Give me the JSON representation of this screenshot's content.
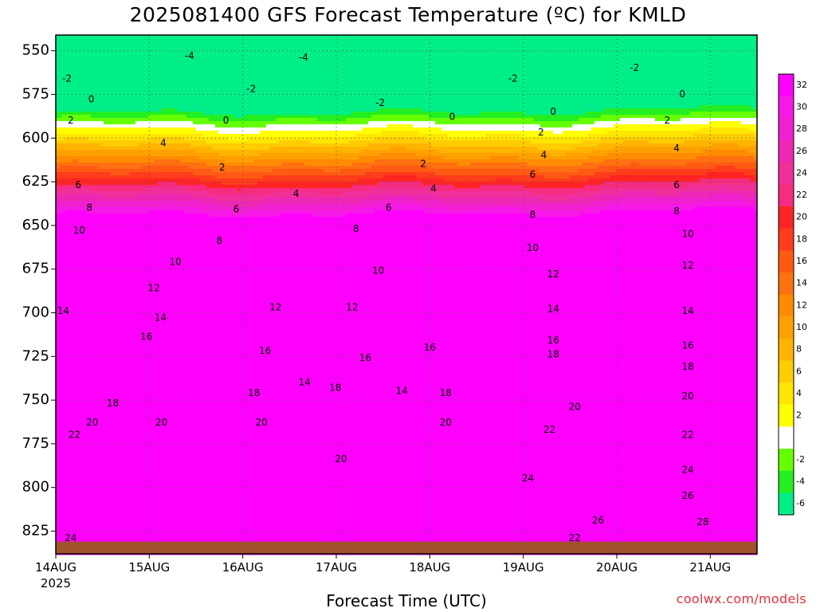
{
  "chart_data": {
    "type": "contour",
    "title": "2025081400 GFS Forecast Temperature (ºC) for KMLD",
    "xlabel": "Forecast Time (UTC)",
    "ylabel": "",
    "credit": "coolwx.com/models",
    "y_ticks": [
      550,
      575,
      600,
      625,
      650,
      675,
      700,
      725,
      750,
      775,
      800,
      825
    ],
    "ylim": [
      838,
      541
    ],
    "x_ticks": [
      "14AUG",
      "15AUG",
      "16AUG",
      "17AUG",
      "18AUG",
      "19AUG",
      "20AUG",
      "21AUG"
    ],
    "x_start_year": "2025",
    "xlim_days": [
      0,
      7.5
    ],
    "contour_interval": 2,
    "grid": true,
    "colorbar": {
      "levels": [
        32,
        30,
        28,
        26,
        24,
        22,
        20,
        18,
        16,
        14,
        12,
        10,
        8,
        6,
        4,
        2,
        -2,
        -4,
        -6
      ],
      "colors": {
        "32": "#ff00ff",
        "30": "#f618e6",
        "28": "#f020d0",
        "26": "#ec28b4",
        "24": "#f0309a",
        "22": "#f52c80",
        "20": "#ff2424",
        "18": "#ff3c1c",
        "16": "#ff5a14",
        "14": "#ff7010",
        "12": "#ff8c00",
        "10": "#ffa000",
        "8": "#ffb400",
        "6": "#ffcc00",
        "4": "#ffe600",
        "2": "#ffff00",
        "0": "#ffffff",
        "-2": "#66ff00",
        "-4": "#22ee22",
        "-6": "#00ee88"
      }
    },
    "ground_color": "#a0522d",
    "contour_labels": [
      {
        "t": 0.12,
        "p": 566,
        "v": -2
      },
      {
        "t": 0.38,
        "p": 578,
        "v": 0
      },
      {
        "t": 0.16,
        "p": 590,
        "v": 2
      },
      {
        "t": 0.24,
        "p": 627,
        "v": 6
      },
      {
        "t": 0.36,
        "p": 640,
        "v": 8
      },
      {
        "t": 0.25,
        "p": 653,
        "v": 10
      },
      {
        "t": 0.08,
        "p": 699,
        "v": 14
      },
      {
        "t": 0.2,
        "p": 770,
        "v": 22
      },
      {
        "t": 0.39,
        "p": 763,
        "v": 20
      },
      {
        "t": 0.61,
        "p": 752,
        "v": 18
      },
      {
        "t": 0.16,
        "p": 829,
        "v": 24
      },
      {
        "t": 1.43,
        "p": 553,
        "v": -4
      },
      {
        "t": 1.05,
        "p": 686,
        "v": 12
      },
      {
        "t": 1.12,
        "p": 703,
        "v": 14
      },
      {
        "t": 0.97,
        "p": 714,
        "v": 16
      },
      {
        "t": 1.15,
        "p": 603,
        "v": 4
      },
      {
        "t": 1.28,
        "p": 671,
        "v": 10
      },
      {
        "t": 1.13,
        "p": 763,
        "v": 20
      },
      {
        "t": 2.09,
        "p": 572,
        "v": -2
      },
      {
        "t": 1.82,
        "p": 590,
        "v": 0
      },
      {
        "t": 1.78,
        "p": 617,
        "v": 2
      },
      {
        "t": 1.93,
        "p": 641,
        "v": 6
      },
      {
        "t": 1.75,
        "p": 659,
        "v": 8
      },
      {
        "t": 2.35,
        "p": 697,
        "v": 12
      },
      {
        "t": 2.24,
        "p": 722,
        "v": 16
      },
      {
        "t": 2.12,
        "p": 746,
        "v": 18
      },
      {
        "t": 2.2,
        "p": 763,
        "v": 20
      },
      {
        "t": 2.65,
        "p": 554,
        "v": -4
      },
      {
        "t": 2.57,
        "p": 632,
        "v": 4
      },
      {
        "t": 3.21,
        "p": 652,
        "v": 8
      },
      {
        "t": 3.45,
        "p": 676,
        "v": 10
      },
      {
        "t": 3.17,
        "p": 697,
        "v": 12
      },
      {
        "t": 3.31,
        "p": 726,
        "v": 16
      },
      {
        "t": 2.66,
        "p": 740,
        "v": 14
      },
      {
        "t": 2.99,
        "p": 743,
        "v": 18
      },
      {
        "t": 3.05,
        "p": 784,
        "v": 20
      },
      {
        "t": 3.47,
        "p": 580,
        "v": -2
      },
      {
        "t": 4.24,
        "p": 588,
        "v": 0
      },
      {
        "t": 3.93,
        "p": 615,
        "v": 2
      },
      {
        "t": 3.56,
        "p": 640,
        "v": 6
      },
      {
        "t": 4.04,
        "p": 629,
        "v": 4
      },
      {
        "t": 4.0,
        "p": 720,
        "v": 16
      },
      {
        "t": 3.7,
        "p": 745,
        "v": 14
      },
      {
        "t": 4.17,
        "p": 746,
        "v": 18
      },
      {
        "t": 4.17,
        "p": 763,
        "v": 20
      },
      {
        "t": 4.89,
        "p": 566,
        "v": -2
      },
      {
        "t": 5.32,
        "p": 585,
        "v": 0
      },
      {
        "t": 5.19,
        "p": 597,
        "v": 2
      },
      {
        "t": 5.22,
        "p": 610,
        "v": 4
      },
      {
        "t": 5.1,
        "p": 621,
        "v": 6
      },
      {
        "t": 5.1,
        "p": 644,
        "v": 8
      },
      {
        "t": 5.1,
        "p": 663,
        "v": 10
      },
      {
        "t": 5.32,
        "p": 678,
        "v": 12
      },
      {
        "t": 5.32,
        "p": 698,
        "v": 14
      },
      {
        "t": 5.32,
        "p": 716,
        "v": 16
      },
      {
        "t": 5.32,
        "p": 724,
        "v": 18
      },
      {
        "t": 5.55,
        "p": 754,
        "v": 20
      },
      {
        "t": 5.28,
        "p": 767,
        "v": 22
      },
      {
        "t": 5.05,
        "p": 795,
        "v": 24
      },
      {
        "t": 5.8,
        "p": 819,
        "v": 26
      },
      {
        "t": 5.55,
        "p": 829,
        "v": 22
      },
      {
        "t": 6.19,
        "p": 560,
        "v": -2
      },
      {
        "t": 6.7,
        "p": 575,
        "v": 0
      },
      {
        "t": 6.54,
        "p": 590,
        "v": 2
      },
      {
        "t": 6.64,
        "p": 606,
        "v": 4
      },
      {
        "t": 6.64,
        "p": 627,
        "v": 6
      },
      {
        "t": 6.64,
        "p": 642,
        "v": 8
      },
      {
        "t": 6.76,
        "p": 655,
        "v": 10
      },
      {
        "t": 6.76,
        "p": 673,
        "v": 12
      },
      {
        "t": 6.76,
        "p": 699,
        "v": 14
      },
      {
        "t": 6.76,
        "p": 719,
        "v": 16
      },
      {
        "t": 6.76,
        "p": 731,
        "v": 18
      },
      {
        "t": 6.76,
        "p": 748,
        "v": 20
      },
      {
        "t": 6.76,
        "p": 770,
        "v": 22
      },
      {
        "t": 6.76,
        "p": 790,
        "v": 24
      },
      {
        "t": 6.76,
        "p": 805,
        "v": 26
      },
      {
        "t": 6.92,
        "p": 820,
        "v": 28
      }
    ]
  }
}
